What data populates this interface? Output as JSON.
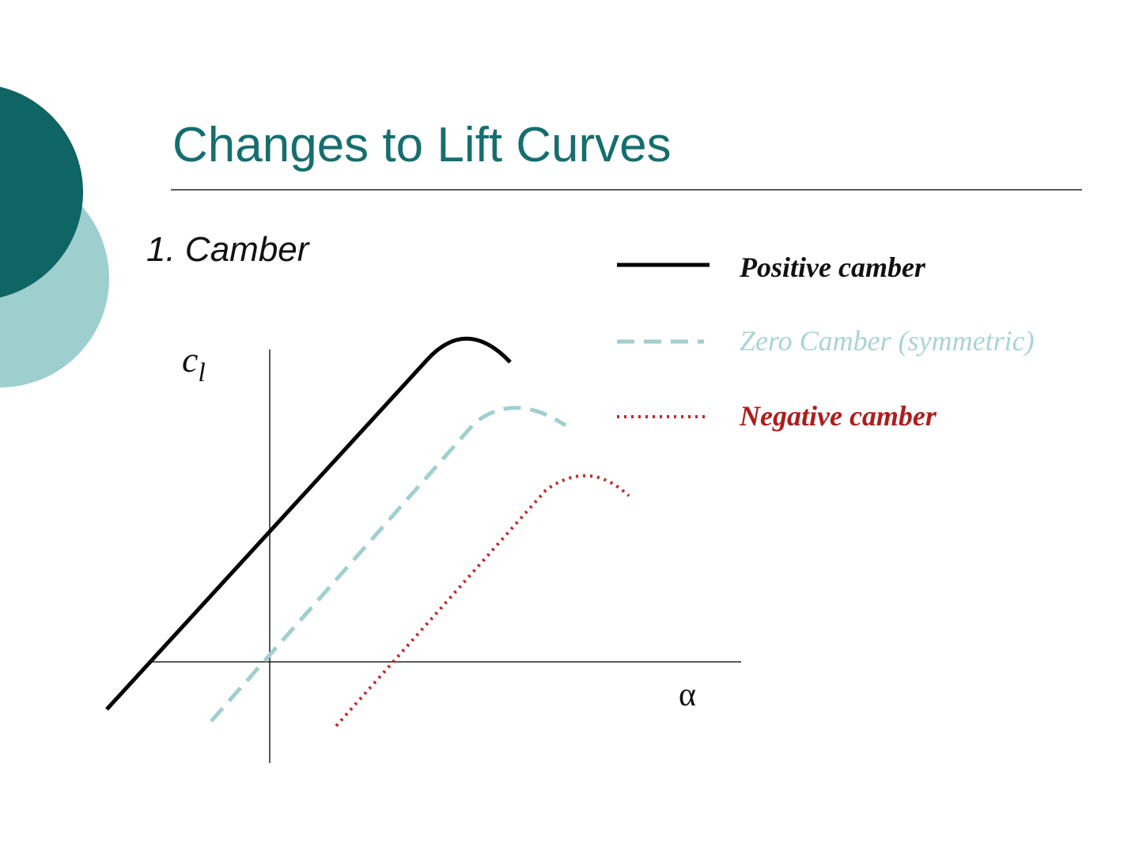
{
  "title": "Changes to Lift Curves",
  "subtitle": "1. Camber",
  "axes": {
    "y_label": {
      "base": "c",
      "subscript": "l"
    },
    "x_label": "α"
  },
  "legend": [
    {
      "label": "Positive camber"
    },
    {
      "label": "Zero Camber (symmetric)"
    },
    {
      "label": "Negative camber"
    }
  ]
}
